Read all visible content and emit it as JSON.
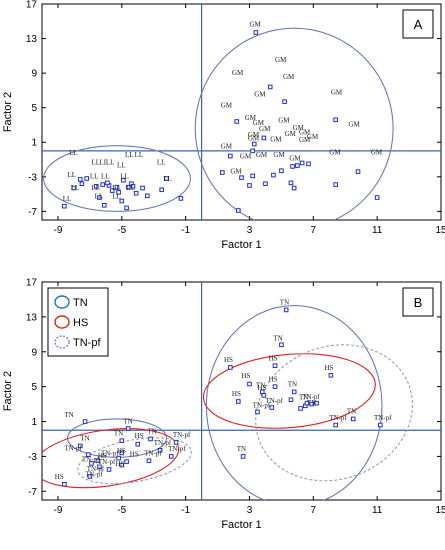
{
  "chart_data": [
    {
      "type": "scatter",
      "panel_label": "A",
      "xlabel": "Factor 1",
      "ylabel": "Factor 2",
      "xlim": [
        -10,
        15
      ],
      "ylim": [
        -8,
        17
      ],
      "xticks": [
        -9,
        -5,
        -1,
        3,
        7,
        11,
        15
      ],
      "yticks": [
        17,
        13,
        9,
        5,
        1,
        -3,
        -7
      ],
      "xtick_labels": [
        "-9",
        "-5",
        "-1",
        "3",
        "7",
        "11",
        "15"
      ],
      "ytick_labels": [
        "17",
        "13",
        "9",
        "5",
        "1",
        "-3",
        "-7"
      ],
      "reference_lines": {
        "x": 0,
        "y": 0
      },
      "marker_color": "#1f2fd0",
      "ellipses": [
        {
          "group": "LL",
          "cx": -5.3,
          "cy": -3.2,
          "rx": 4.6,
          "ry": 3.8,
          "rotation": 0,
          "color": "#6a7bb8",
          "dashed": false
        },
        {
          "group": "GM",
          "cx": 5.8,
          "cy": 2.6,
          "rx": 6.2,
          "ry": 11.6,
          "rotation": 0,
          "color": "#6a7bb8",
          "dashed": false
        }
      ],
      "series": [
        {
          "name": "GM",
          "points": [
            [
              3.4,
              13.7
            ],
            [
              4.3,
              7.4
            ],
            [
              5.2,
              5.7
            ],
            [
              2.2,
              3.4
            ],
            [
              8.4,
              3.6
            ],
            [
              3.9,
              1.5
            ],
            [
              3.3,
              0.8
            ],
            [
              3.2,
              0.0
            ],
            [
              1.8,
              -0.6
            ],
            [
              1.3,
              -2.5
            ],
            [
              3.2,
              -2.9
            ],
            [
              2.5,
              -3.1
            ],
            [
              4.5,
              -2.8
            ],
            [
              5.0,
              -2.3
            ],
            [
              6.0,
              -1.7
            ],
            [
              6.3,
              -1.4
            ],
            [
              6.7,
              -1.5
            ],
            [
              5.7,
              -1.8
            ],
            [
              4.0,
              -3.8
            ],
            [
              5.6,
              -3.7
            ],
            [
              5.8,
              -4.3
            ],
            [
              3.0,
              -4.0
            ],
            [
              8.4,
              -3.9
            ],
            [
              11.0,
              -5.4
            ],
            [
              9.8,
              -2.4
            ],
            [
              2.3,
              -6.9
            ]
          ]
        },
        {
          "name": "LL",
          "points": [
            [
              -8.0,
              -4.3
            ],
            [
              -7.6,
              -3.3
            ],
            [
              -7.5,
              -3.8
            ],
            [
              -7.2,
              -3.2
            ],
            [
              -6.6,
              -4.1
            ],
            [
              -6.2,
              -3.9
            ],
            [
              -5.8,
              -4.0
            ],
            [
              -5.3,
              -4.2
            ],
            [
              -5.6,
              -4.6
            ],
            [
              -5.2,
              -4.8
            ],
            [
              -4.6,
              -4.2
            ],
            [
              -4.4,
              -3.8
            ],
            [
              -4.1,
              -4.9
            ],
            [
              -3.7,
              -4.3
            ],
            [
              -6.4,
              -5.4
            ],
            [
              -5.0,
              -5.8
            ],
            [
              -2.5,
              -4.5
            ],
            [
              -2.2,
              -3.2
            ],
            [
              -1.3,
              -5.5
            ],
            [
              -8.6,
              -6.4
            ],
            [
              -6.1,
              -6.3
            ],
            [
              -4.7,
              -6.6
            ],
            [
              -3.4,
              -5.2
            ],
            [
              -5.9,
              -3.7
            ],
            [
              -4.9,
              -3.4
            ],
            [
              -4.3,
              -4.1
            ]
          ]
        }
      ],
      "point_labels": [
        {
          "text": "GM",
          "x": 3.0,
          "y": 14.4
        },
        {
          "text": "GM",
          "x": 4.6,
          "y": 10.3
        },
        {
          "text": "GM",
          "x": 5.1,
          "y": 8.3
        },
        {
          "text": "GM",
          "x": 1.9,
          "y": 8.8
        },
        {
          "text": "GM",
          "x": 3.3,
          "y": 6.3
        },
        {
          "text": "GM",
          "x": 8.1,
          "y": 6.5
        },
        {
          "text": "GM",
          "x": 1.2,
          "y": 5.0
        },
        {
          "text": "GM",
          "x": 2.7,
          "y": 3.6
        },
        {
          "text": "GM",
          "x": 3.2,
          "y": 3.0
        },
        {
          "text": "GM",
          "x": 3.6,
          "y": 2.3
        },
        {
          "text": "GM",
          "x": 2.9,
          "y": 1.6
        },
        {
          "text": "GM",
          "x": 4.8,
          "y": 3.3
        },
        {
          "text": "GM",
          "x": 5.7,
          "y": 2.4
        },
        {
          "text": "GM",
          "x": 1.2,
          "y": 0.3
        },
        {
          "text": "GM",
          "x": 2.9,
          "y": 1.2
        },
        {
          "text": "GM",
          "x": 4.3,
          "y": 1.1
        },
        {
          "text": "GM",
          "x": 5.2,
          "y": 1.7
        },
        {
          "text": "GM",
          "x": 6.1,
          "y": 1.9
        },
        {
          "text": "GM",
          "x": 6.6,
          "y": 1.4
        },
        {
          "text": "GM",
          "x": 6.1,
          "y": 1.0
        },
        {
          "text": "GM",
          "x": 9.2,
          "y": 2.8
        },
        {
          "text": "GM",
          "x": 2.4,
          "y": -0.9
        },
        {
          "text": "GM",
          "x": 3.4,
          "y": -0.7
        },
        {
          "text": "GM",
          "x": 4.5,
          "y": -0.7
        },
        {
          "text": "GM",
          "x": 5.5,
          "y": -1.1
        },
        {
          "text": "GM",
          "x": 8.0,
          "y": -0.4
        },
        {
          "text": "GM",
          "x": 10.6,
          "y": -0.4
        },
        {
          "text": "GM",
          "x": 1.8,
          "y": -2.6
        },
        {
          "text": "LL",
          "x": -8.3,
          "y": -0.5
        },
        {
          "text": "LL",
          "x": -6.9,
          "y": -1.6
        },
        {
          "text": "LL",
          "x": -6.4,
          "y": -1.6
        },
        {
          "text": "LL",
          "x": -6.0,
          "y": -1.6
        },
        {
          "text": "LL",
          "x": -5.3,
          "y": -1.9
        },
        {
          "text": "LL",
          "x": -4.8,
          "y": -0.7
        },
        {
          "text": "LL",
          "x": -4.2,
          "y": -0.7
        },
        {
          "text": "LL",
          "x": -2.8,
          "y": -1.6
        },
        {
          "text": "LL",
          "x": -8.4,
          "y": -3.0
        },
        {
          "text": "LL",
          "x": -7.0,
          "y": -3.2
        },
        {
          "text": "LL",
          "x": -6.3,
          "y": -3.2
        },
        {
          "text": "LL",
          "x": -5.1,
          "y": -3.2
        },
        {
          "text": "LL",
          "x": -2.4,
          "y": -3.5
        },
        {
          "text": "LL",
          "x": -8.2,
          "y": -4.5
        },
        {
          "text": "LL",
          "x": -6.9,
          "y": -4.5
        },
        {
          "text": "LL",
          "x": -5.6,
          "y": -4.5
        },
        {
          "text": "LL",
          "x": -4.7,
          "y": -4.5
        },
        {
          "text": "LL",
          "x": -6.7,
          "y": -5.5
        },
        {
          "text": "LL",
          "x": -5.6,
          "y": -5.5
        },
        {
          "text": "LL",
          "x": -8.7,
          "y": -5.8
        }
      ]
    },
    {
      "type": "scatter",
      "panel_label": "B",
      "xlabel": "Factor 1",
      "ylabel": "Factor 2",
      "xlim": [
        -10,
        15
      ],
      "ylim": [
        -8,
        17
      ],
      "xticks": [
        -9,
        -5,
        -1,
        3,
        7,
        11,
        15
      ],
      "yticks": [
        17,
        13,
        9,
        5,
        1,
        -3,
        -7
      ],
      "xtick_labels": [
        "-9",
        "-5",
        "-1",
        "3",
        "7",
        "11",
        "15"
      ],
      "ytick_labels": [
        "17",
        "13",
        "9",
        "5",
        "1",
        "-3",
        "-7"
      ],
      "reference_lines": {
        "x": 0,
        "y": 0
      },
      "marker_color": "#1f2fd0",
      "legend": {
        "placement": "top-left",
        "entries": [
          {
            "label": "TN",
            "color": "#1f6fd0",
            "dashed": false
          },
          {
            "label": "HS",
            "color": "#e0201c",
            "dashed": false
          },
          {
            "label": "TN-pf",
            "color": "#7a8ac0",
            "dashed": true
          }
        ]
      },
      "ellipses": [
        {
          "group": "TN",
          "cx": -5.3,
          "cy": -0.9,
          "rx": 3.1,
          "ry": 2.2,
          "rotation": 0,
          "color": "#6a7bb8",
          "dashed": false
        },
        {
          "group": "HS",
          "cx": -6.0,
          "cy": -3.2,
          "rx": 4.6,
          "ry": 3.2,
          "rotation": -8,
          "color": "#e0201c",
          "dashed": false
        },
        {
          "group": "TN-pf",
          "cx": -4.2,
          "cy": -3.5,
          "rx": 3.6,
          "ry": 2.4,
          "rotation": -10,
          "color": "#9aa0b0",
          "dashed": true
        },
        {
          "group": "TN",
          "cx": 5.8,
          "cy": 2.8,
          "rx": 5.5,
          "ry": 11.5,
          "rotation": 0,
          "color": "#6a7bb8",
          "dashed": false
        },
        {
          "group": "HS",
          "cx": 5.5,
          "cy": 4.5,
          "rx": 5.4,
          "ry": 4.2,
          "rotation": -5,
          "color": "#e0201c",
          "dashed": false
        },
        {
          "group": "TN-pf",
          "cx": 8.3,
          "cy": 2.0,
          "rx": 5.0,
          "ry": 7.6,
          "rotation": -20,
          "color": "#9aa0b0",
          "dashed": true
        }
      ],
      "series": [
        {
          "name": "TN",
          "points": [
            [
              5.3,
              13.8
            ],
            [
              5.0,
              9.8
            ],
            [
              3.8,
              4.4
            ],
            [
              5.8,
              4.4
            ],
            [
              6.5,
              2.8
            ],
            [
              6.2,
              2.5
            ],
            [
              2.6,
              -3.0
            ],
            [
              9.5,
              1.3
            ],
            [
              -7.3,
              1.0
            ],
            [
              -4.6,
              0.2
            ],
            [
              -7.6,
              -1.8
            ],
            [
              -5.0,
              -1.2
            ],
            [
              -3.2,
              -1.0
            ]
          ]
        },
        {
          "name": "HS",
          "points": [
            [
              1.8,
              7.2
            ],
            [
              4.6,
              7.4
            ],
            [
              8.1,
              6.3
            ],
            [
              3.0,
              5.3
            ],
            [
              4.6,
              5.0
            ],
            [
              2.3,
              3.3
            ],
            [
              3.9,
              4.0
            ],
            [
              -8.6,
              -6.2
            ],
            [
              -6.9,
              -3.8
            ],
            [
              -5.2,
              -3.2
            ],
            [
              -4.7,
              -3.6
            ],
            [
              -4.0,
              -1.6
            ],
            [
              -5.0,
              -2.6
            ]
          ]
        },
        {
          "name": "TN-pf",
          "points": [
            [
              6.6,
              3.1
            ],
            [
              6.9,
              3.0
            ],
            [
              7.2,
              3.1
            ],
            [
              5.6,
              3.5
            ],
            [
              4.4,
              2.6
            ],
            [
              3.5,
              2.1
            ],
            [
              8.4,
              0.6
            ],
            [
              11.2,
              0.6
            ],
            [
              -7.1,
              -2.8
            ],
            [
              -6.5,
              -3.5
            ],
            [
              -6.4,
              -4.2
            ],
            [
              -5.8,
              -4.5
            ],
            [
              -5.0,
              -4.0
            ],
            [
              -2.6,
              -2.3
            ],
            [
              -1.6,
              -1.4
            ],
            [
              -1.9,
              -3.0
            ],
            [
              -3.3,
              -3.5
            ],
            [
              -7.0,
              -5.3
            ]
          ]
        }
      ],
      "point_labels": [
        {
          "text": "TN",
          "x": 4.9,
          "y": 14.4
        },
        {
          "text": "TN",
          "x": 4.5,
          "y": 10.3
        },
        {
          "text": "HS",
          "x": 1.4,
          "y": 7.8
        },
        {
          "text": "HS",
          "x": 4.2,
          "y": 8.0
        },
        {
          "text": "HS",
          "x": 7.7,
          "y": 6.9
        },
        {
          "text": "HS",
          "x": 2.5,
          "y": 6.0
        },
        {
          "text": "HS",
          "x": 4.2,
          "y": 5.6
        },
        {
          "text": "TN",
          "x": 3.4,
          "y": 4.9
        },
        {
          "text": "TN",
          "x": 5.4,
          "y": 5.0
        },
        {
          "text": "HS",
          "x": 1.9,
          "y": 3.9
        },
        {
          "text": "HS",
          "x": 3.5,
          "y": 4.6
        },
        {
          "text": "TN",
          "x": 6.1,
          "y": 3.5
        },
        {
          "text": "TN-pf",
          "x": 6.3,
          "y": 3.6
        },
        {
          "text": "TN",
          "x": 6.6,
          "y": 2.9
        },
        {
          "text": "TN",
          "x": 9.1,
          "y": 1.9
        },
        {
          "text": "TN-pf",
          "x": 4.0,
          "y": 3.1
        },
        {
          "text": "TN-pf",
          "x": 3.2,
          "y": 2.6
        },
        {
          "text": "TN-pf",
          "x": 8.0,
          "y": 1.2
        },
        {
          "text": "TN-pf",
          "x": 10.8,
          "y": 1.2
        },
        {
          "text": "TN",
          "x": 2.2,
          "y": -2.4
        },
        {
          "text": "TN",
          "x": -8.6,
          "y": 1.5
        },
        {
          "text": "TN",
          "x": -4.9,
          "y": 0.8
        },
        {
          "text": "HS",
          "x": -4.2,
          "y": -0.9
        },
        {
          "text": "TN",
          "x": -7.6,
          "y": -1.2
        },
        {
          "text": "TN",
          "x": -5.5,
          "y": -0.6
        },
        {
          "text": "TN",
          "x": -3.4,
          "y": -0.4
        },
        {
          "text": "TN-pf",
          "x": -3.0,
          "y": -1.7
        },
        {
          "text": "TN-pf",
          "x": -1.8,
          "y": -0.8
        },
        {
          "text": "TN-pf",
          "x": -8.6,
          "y": -2.3
        },
        {
          "text": "TN-pf",
          "x": -6.3,
          "y": -2.9
        },
        {
          "text": "HS",
          "x": -6.5,
          "y": -3.2
        },
        {
          "text": "HS",
          "x": -5.3,
          "y": -2.6
        },
        {
          "text": "HS",
          "x": -4.5,
          "y": -3.0
        },
        {
          "text": "TN-pf",
          "x": -7.5,
          "y": -3.6
        },
        {
          "text": "TN-pf",
          "x": -6.5,
          "y": -3.9
        },
        {
          "text": "HS",
          "x": -5.4,
          "y": -4.1
        },
        {
          "text": "TN-pf",
          "x": -2.1,
          "y": -2.4
        },
        {
          "text": "TN-pf",
          "x": -7.2,
          "y": -4.7
        },
        {
          "text": "TN-pf",
          "x": -3.6,
          "y": -2.9
        },
        {
          "text": "HS",
          "x": -9.2,
          "y": -5.6
        },
        {
          "text": "TN-pf",
          "x": -7.3,
          "y": -5.3
        }
      ]
    }
  ]
}
